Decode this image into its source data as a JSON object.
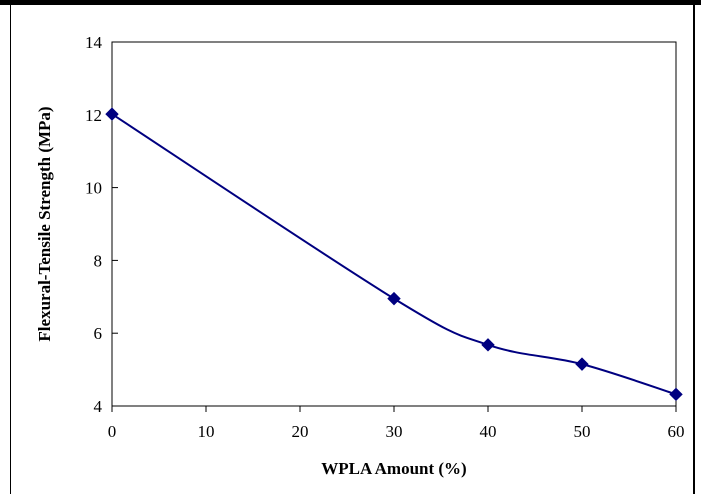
{
  "chart_data": {
    "type": "line",
    "title": "",
    "xlabel": "WPLA Amount (%)",
    "ylabel": "Flexural-Tensile Strength (MPa)",
    "xlim": [
      0,
      60
    ],
    "ylim": [
      4,
      14
    ],
    "xticks": [
      0,
      10,
      20,
      30,
      40,
      50,
      60
    ],
    "yticks": [
      4,
      6,
      8,
      10,
      12,
      14
    ],
    "grid": false,
    "legend": "none",
    "series": [
      {
        "x": [
          0,
          30,
          40,
          50,
          60
        ],
        "y": [
          12.02,
          6.95,
          5.68,
          5.15,
          4.32
        ],
        "color": "#000080",
        "marker": "diamond"
      }
    ]
  }
}
